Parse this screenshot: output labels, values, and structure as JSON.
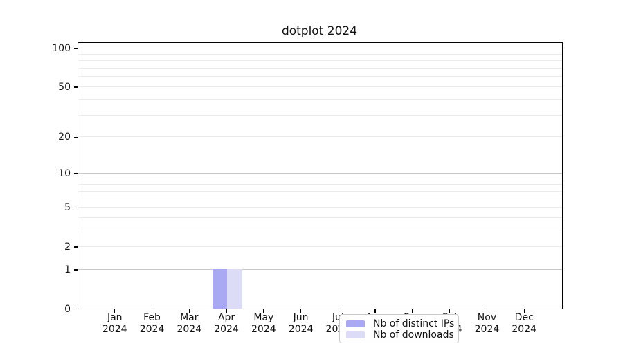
{
  "chart_data": {
    "type": "bar",
    "title": "dotplot 2024",
    "categories": [
      "Jan 2024",
      "Feb 2024",
      "Mar 2024",
      "Apr 2024",
      "May 2024",
      "Jun 2024",
      "Jul 2024",
      "Aug 2024",
      "Sep 2024",
      "Oct 2024",
      "Nov 2024",
      "Dec 2024"
    ],
    "series": [
      {
        "name": "Nb of distinct IPs",
        "color": "#a9a9f3",
        "values": [
          0,
          0,
          0,
          1,
          0,
          0,
          0,
          0,
          0,
          0,
          0,
          0
        ]
      },
      {
        "name": "Nb of downloads",
        "color": "#dcdcf7",
        "values": [
          0,
          0,
          0,
          1,
          0,
          0,
          0,
          0,
          0,
          0,
          0,
          0
        ]
      }
    ],
    "xlabel": "",
    "ylabel": "",
    "y_scale": "log1p",
    "ylim": [
      0,
      110
    ],
    "y_ticks": [
      0,
      1,
      2,
      5,
      10,
      20,
      50,
      100
    ],
    "y_gridlines": [
      1,
      2,
      3,
      4,
      5,
      6,
      7,
      8,
      9,
      10,
      20,
      30,
      40,
      50,
      60,
      70,
      80,
      90,
      100
    ],
    "y_gridlines_emphasized": [
      1,
      10,
      100
    ],
    "grid": "horizontal",
    "legend_position": "inside-bottom-center",
    "colors": {
      "grid": "#ebebeb",
      "grid_emphasis": "#c8c8c8",
      "axis": "#000000"
    }
  }
}
